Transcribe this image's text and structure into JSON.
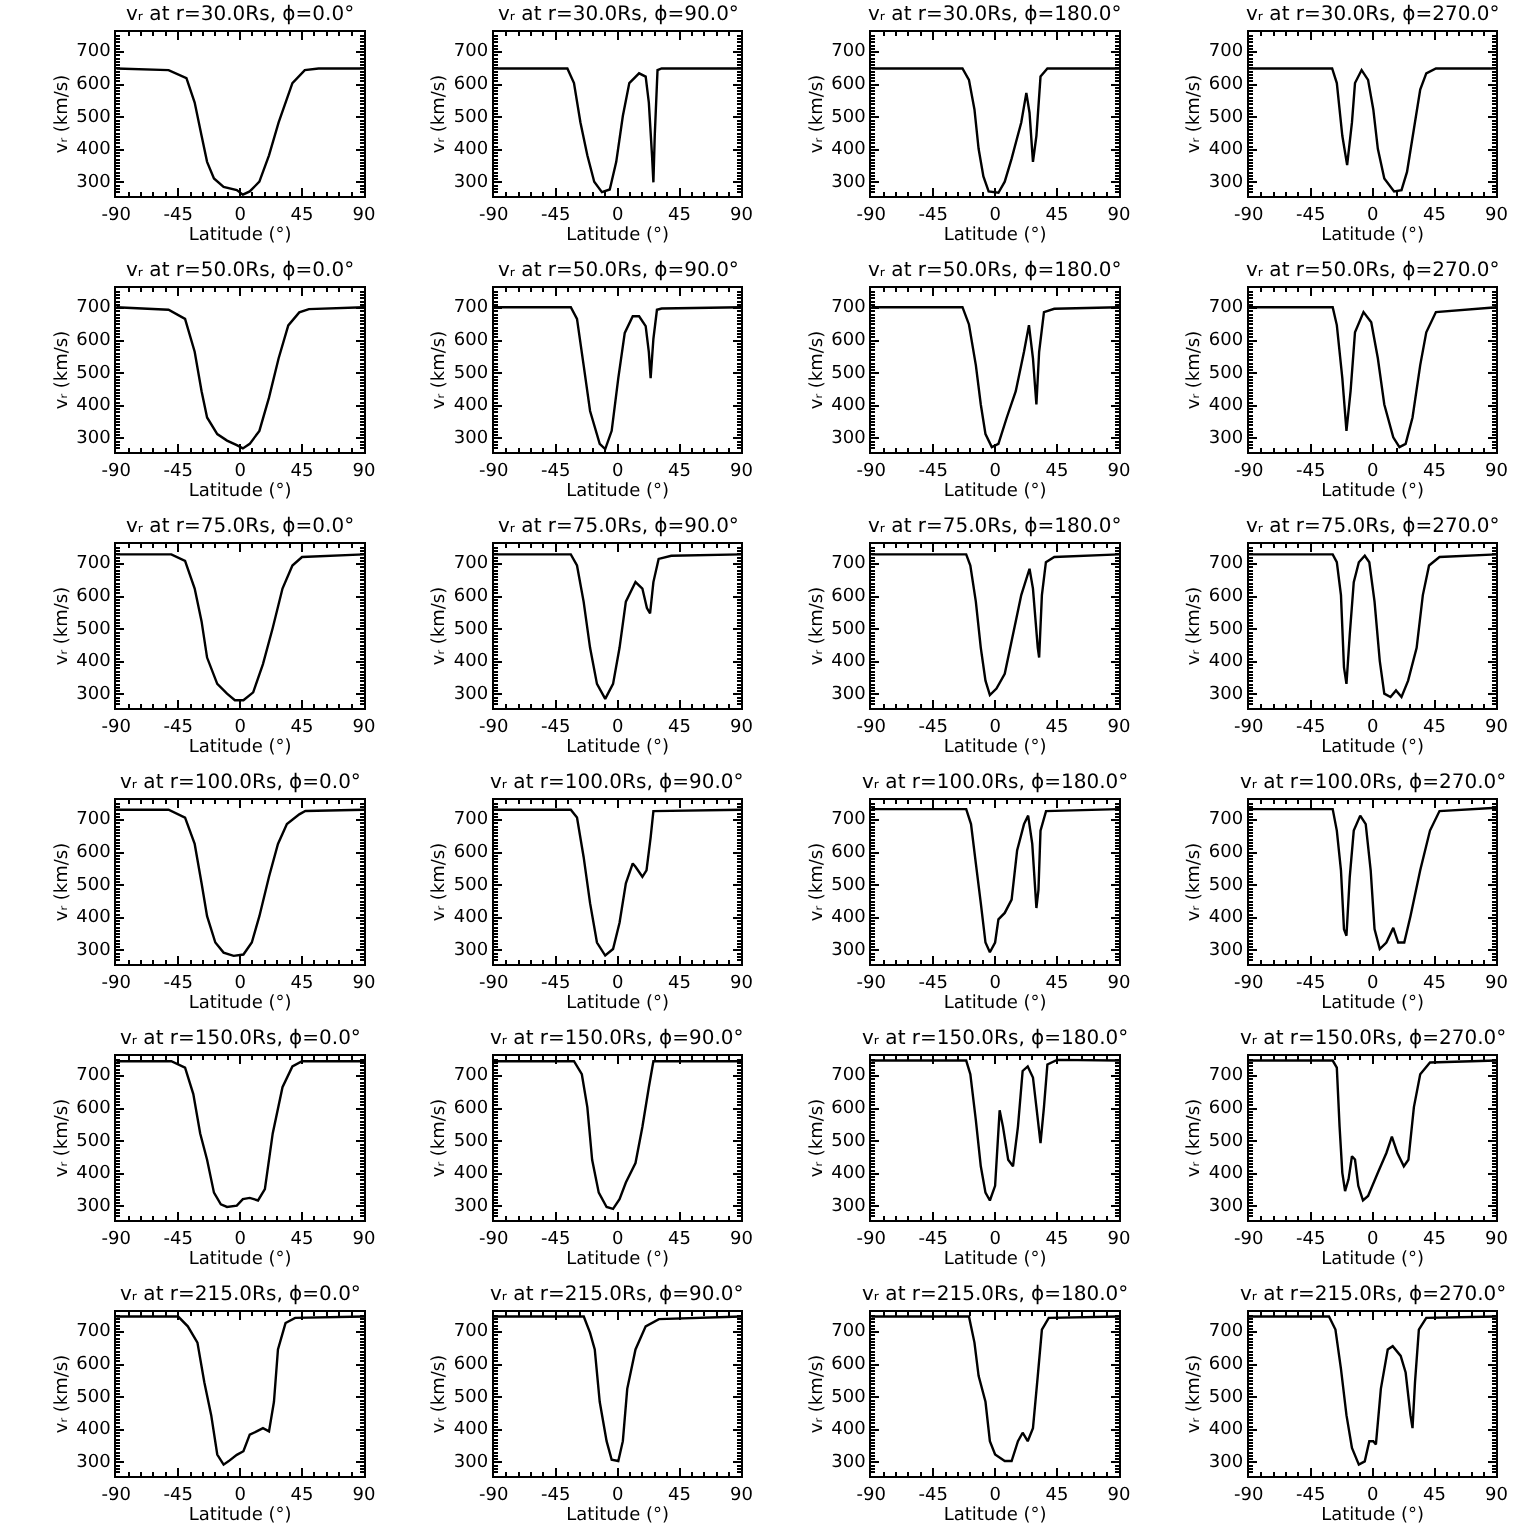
{
  "chart_data": [
    {
      "type": "line",
      "title": "vᵣ at r=30.0Rs, ϕ=0.0°",
      "xlabel": "Latitude (°)",
      "ylabel": "vᵣ (km/s)",
      "xlim": [
        -90,
        90
      ],
      "xticks": [
        -90,
        -45,
        0,
        45,
        90
      ],
      "ylim": [
        258,
        762
      ],
      "yticks": [
        300,
        400,
        500,
        600,
        700
      ],
      "x": [
        -90,
        -52,
        -39,
        -33,
        -28,
        -24,
        -19,
        -12,
        -2.4,
        2,
        7,
        14,
        21,
        28,
        38,
        47,
        57,
        90
      ],
      "series": [
        {
          "color": "#000000",
          "values": [
            650,
            645,
            620,
            545,
            443,
            363,
            312,
            286,
            276,
            262,
            272,
            302,
            383,
            484,
            605,
            645,
            650,
            650
          ]
        }
      ]
    },
    {
      "type": "line",
      "title": "vᵣ at r=30.0Rs, ϕ=90.0°",
      "xlabel": "Latitude (°)",
      "ylabel": "vᵣ (km/s)",
      "xlim": [
        -90,
        90
      ],
      "xticks": [
        -90,
        -45,
        0,
        45,
        90
      ],
      "ylim": [
        258,
        762
      ],
      "yticks": [
        300,
        400,
        500,
        600,
        700
      ],
      "x": [
        -90,
        -36.5,
        -31.7,
        -27,
        -22,
        -17,
        -11.4,
        -5.7,
        -1,
        3.8,
        8.5,
        15.6,
        20.4,
        22.7,
        25,
        26,
        27,
        29,
        32,
        90
      ],
      "series": [
        {
          "color": "#000000",
          "values": [
            650,
            650,
            605,
            484,
            383,
            302,
            270,
            278,
            363,
            504,
            605,
            635,
            625,
            545,
            383,
            300,
            444,
            645,
            650,
            650
          ]
        }
      ]
    },
    {
      "type": "line",
      "title": "vᵣ at r=30.0Rs, ϕ=180.0°",
      "xlabel": "Latitude (°)",
      "ylabel": "vᵣ (km/s)",
      "xlim": [
        -90,
        90
      ],
      "xticks": [
        -90,
        -45,
        0,
        45,
        90
      ],
      "ylim": [
        258,
        762
      ],
      "yticks": [
        300,
        400,
        500,
        600,
        700
      ],
      "x": [
        -90,
        -23.7,
        -19,
        -15,
        -12,
        -8.5,
        -4.7,
        2.4,
        7,
        12,
        19,
        22.7,
        25,
        27.5,
        30,
        33,
        38,
        90
      ],
      "series": [
        {
          "color": "#000000",
          "values": [
            650,
            650,
            615,
            524,
            403,
            318,
            272,
            268,
            302,
            373,
            484,
            575,
            514,
            363,
            443,
            625,
            650,
            650
          ]
        }
      ]
    },
    {
      "type": "line",
      "title": "vᵣ at r=30.0Rs, ϕ=270.0°",
      "xlabel": "Latitude (°)",
      "ylabel": "vᵣ (km/s)",
      "xlim": [
        -90,
        90
      ],
      "xticks": [
        -90,
        -45,
        0,
        45,
        90
      ],
      "ylim": [
        258,
        762
      ],
      "yticks": [
        300,
        400,
        500,
        600,
        700
      ],
      "x": [
        -90,
        -29.4,
        -26,
        -22,
        -18.5,
        -15,
        -12.8,
        -8,
        -3.3,
        0.5,
        3.8,
        8.5,
        15.6,
        21,
        25,
        30,
        34.6,
        39,
        46,
        90
      ],
      "series": [
        {
          "color": "#000000",
          "values": [
            650,
            650,
            605,
            443,
            353,
            484,
            605,
            645,
            615,
            524,
            403,
            312,
            272,
            276,
            332,
            464,
            585,
            635,
            650,
            650
          ]
        }
      ]
    },
    {
      "type": "line",
      "title": "vᵣ at r=50.0Rs, ϕ=0.0°",
      "xlabel": "Latitude (°)",
      "ylabel": "vᵣ (km/s)",
      "xlim": [
        -90,
        90
      ],
      "xticks": [
        -90,
        -45,
        0,
        45,
        90
      ],
      "ylim": [
        258,
        762
      ],
      "yticks": [
        300,
        400,
        500,
        600,
        700
      ],
      "x": [
        -90,
        -52,
        -40,
        -33,
        -28,
        -24,
        -16.6,
        -9.5,
        -2.4,
        2,
        7,
        14,
        21,
        28,
        35,
        43,
        50,
        90
      ],
      "series": [
        {
          "color": "#000000",
          "values": [
            703,
            695,
            667,
            566,
            445,
            364,
            313,
            293,
            279,
            269,
            283,
            323,
            425,
            546,
            647,
            687,
            697,
            703
          ]
        }
      ]
    },
    {
      "type": "line",
      "title": "vᵣ at r=50.0Rs, ϕ=90.0°",
      "xlabel": "Latitude (°)",
      "ylabel": "vᵣ (km/s)",
      "xlim": [
        -90,
        90
      ],
      "xticks": [
        -90,
        -45,
        0,
        45,
        90
      ],
      "ylim": [
        258,
        762
      ],
      "yticks": [
        300,
        400,
        500,
        600,
        700
      ],
      "x": [
        -90,
        -34,
        -29.5,
        -24.7,
        -20,
        -13,
        -9,
        -4.3,
        0.5,
        5.2,
        11,
        15.6,
        20.4,
        22.7,
        24,
        26,
        28.6,
        32,
        90
      ],
      "series": [
        {
          "color": "#000000",
          "values": [
            703,
            703,
            667,
            525,
            384,
            283,
            267,
            323,
            485,
            624,
            675,
            675,
            645,
            565,
            485,
            606,
            695,
            699,
            703
          ]
        }
      ]
    },
    {
      "type": "line",
      "title": "vᵣ at r=50.0Rs, ϕ=180.0°",
      "xlabel": "Latitude (°)",
      "ylabel": "vᵣ (km/s)",
      "xlim": [
        -90,
        90
      ],
      "xticks": [
        -90,
        -45,
        0,
        45,
        90
      ],
      "ylim": [
        258,
        762
      ],
      "yticks": [
        300,
        400,
        500,
        600,
        700
      ],
      "x": [
        -90,
        -23.7,
        -19,
        -14,
        -10.4,
        -7,
        -2.4,
        2.4,
        8.5,
        15,
        21,
        24.6,
        27.5,
        30,
        32,
        35.5,
        43,
        90
      ],
      "series": [
        {
          "color": "#000000",
          "values": [
            703,
            703,
            650,
            525,
            404,
            313,
            273,
            283,
            364,
            445,
            566,
            648,
            546,
            404,
            566,
            688,
            698,
            703
          ]
        }
      ]
    },
    {
      "type": "line",
      "title": "vᵣ at r=50.0Rs, ϕ=270.0°",
      "xlabel": "Latitude (°)",
      "ylabel": "vᵣ (km/s)",
      "xlim": [
        -90,
        90
      ],
      "xticks": [
        -90,
        -45,
        0,
        45,
        90
      ],
      "ylim": [
        258,
        762
      ],
      "yticks": [
        300,
        400,
        500,
        600,
        700
      ],
      "x": [
        -90,
        -29,
        -26,
        -22,
        -19,
        -16,
        -12.8,
        -6.6,
        -1,
        3.8,
        8.5,
        15,
        19.5,
        24,
        29,
        34.6,
        39,
        46,
        90
      ],
      "series": [
        {
          "color": "#000000",
          "values": [
            703,
            703,
            648,
            485,
            323,
            445,
            626,
            688,
            657,
            546,
            404,
            303,
            273,
            283,
            364,
            525,
            626,
            688,
            703
          ]
        }
      ]
    },
    {
      "type": "line",
      "title": "vᵣ at r=75.0Rs, ϕ=0.0°",
      "xlabel": "Latitude (°)",
      "ylabel": "vᵣ (km/s)",
      "xlim": [
        -90,
        90
      ],
      "xticks": [
        -90,
        -45,
        0,
        45,
        90
      ],
      "ylim": [
        258,
        762
      ],
      "yticks": [
        300,
        400,
        500,
        600,
        700
      ],
      "x": [
        -90,
        -50,
        -40,
        -33,
        -28,
        -24,
        -16.6,
        -9.5,
        -3.8,
        2.4,
        9.5,
        16.6,
        23.7,
        30.8,
        38,
        45,
        90
      ],
      "series": [
        {
          "color": "#000000",
          "values": [
            730,
            730,
            710,
            625,
            524,
            413,
            332,
            302,
            282,
            282,
            306,
            393,
            504,
            625,
            696,
            722,
            730
          ]
        }
      ]
    },
    {
      "type": "line",
      "title": "vᵣ at r=75.0Rs, ϕ=90.0°",
      "xlabel": "Latitude (°)",
      "ylabel": "vᵣ (km/s)",
      "xlim": [
        -90,
        90
      ],
      "xticks": [
        -90,
        -45,
        0,
        45,
        90
      ],
      "ylim": [
        258,
        762
      ],
      "yticks": [
        300,
        400,
        500,
        600,
        700
      ],
      "x": [
        -90,
        -34,
        -29.5,
        -24.7,
        -20,
        -15,
        -9,
        -3.3,
        1.4,
        6,
        13,
        18,
        21.3,
        23.6,
        26,
        29.8,
        39,
        90
      ],
      "series": [
        {
          "color": "#000000",
          "values": [
            730,
            730,
            696,
            585,
            443,
            332,
            286,
            332,
            443,
            585,
            645,
            625,
            565,
            549,
            645,
            716,
            726,
            730
          ]
        }
      ]
    },
    {
      "type": "line",
      "title": "vᵣ at r=75.0Rs, ϕ=180.0°",
      "xlabel": "Latitude (°)",
      "ylabel": "vᵣ (km/s)",
      "xlim": [
        -90,
        90
      ],
      "xticks": [
        -90,
        -45,
        0,
        45,
        90
      ],
      "ylim": [
        258,
        762
      ],
      "yticks": [
        300,
        400,
        500,
        600,
        700
      ],
      "x": [
        -90,
        -21,
        -18,
        -14,
        -10.4,
        -7,
        -3.8,
        1,
        7,
        12,
        19,
        25,
        27.5,
        31,
        32,
        34,
        36.9,
        43,
        90
      ],
      "series": [
        {
          "color": "#000000",
          "values": [
            730,
            730,
            696,
            585,
            443,
            342,
            298,
            318,
            363,
            464,
            605,
            686,
            625,
            443,
            413,
            605,
            706,
            722,
            730
          ]
        }
      ]
    },
    {
      "type": "line",
      "title": "vᵣ at r=75.0Rs, ϕ=270.0°",
      "xlabel": "Latitude (°)",
      "ylabel": "vᵣ (km/s)",
      "xlim": [
        -90,
        90
      ],
      "xticks": [
        -90,
        -45,
        0,
        45,
        90
      ],
      "ylim": [
        258,
        762
      ],
      "yticks": [
        300,
        400,
        500,
        600,
        700
      ],
      "x": [
        -90,
        -29,
        -26,
        -23,
        -20.8,
        -19,
        -16.6,
        -13.7,
        -10,
        -5.7,
        -2.4,
        1.4,
        5.2,
        8.5,
        13,
        17,
        21,
        25.8,
        32,
        36.5,
        41,
        48.6,
        90
      ],
      "series": [
        {
          "color": "#000000",
          "values": [
            730,
            730,
            706,
            605,
            383,
            332,
            484,
            645,
            706,
            726,
            706,
            585,
            403,
            302,
            292,
            312,
            292,
            342,
            443,
            605,
            696,
            722,
            730
          ]
        }
      ]
    },
    {
      "type": "line",
      "title": "vᵣ at r=100.0Rs, ϕ=0.0°",
      "xlabel": "Latitude (°)",
      "ylabel": "vᵣ (km/s)",
      "xlim": [
        -90,
        90
      ],
      "xticks": [
        -90,
        -45,
        0,
        45,
        90
      ],
      "ylim": [
        258,
        762
      ],
      "yticks": [
        300,
        400,
        500,
        600,
        700
      ],
      "x": [
        -90,
        -52,
        -40,
        -33,
        -28,
        -24,
        -18,
        -12,
        -4.7,
        2.4,
        8.5,
        14,
        21,
        27.5,
        34,
        43,
        47.4,
        90
      ],
      "series": [
        {
          "color": "#000000",
          "values": [
            732,
            732,
            708,
            627,
            506,
            405,
            324,
            293,
            283,
            287,
            324,
            405,
            526,
            627,
            688,
            718,
            728,
            732
          ]
        }
      ]
    },
    {
      "type": "line",
      "title": "vᵣ at r=100.0Rs, ϕ=90.0°",
      "xlabel": "Latitude (°)",
      "ylabel": "vᵣ (km/s)",
      "xlim": [
        -90,
        90
      ],
      "xticks": [
        -90,
        -45,
        0,
        45,
        90
      ],
      "ylim": [
        258,
        762
      ],
      "yticks": [
        300,
        400,
        500,
        600,
        700
      ],
      "x": [
        -90,
        -34,
        -29.5,
        -24.7,
        -20,
        -15,
        -9,
        -3.3,
        1.4,
        6,
        11,
        13,
        18,
        21,
        24,
        26,
        90
      ],
      "series": [
        {
          "color": "#000000",
          "values": [
            732,
            732,
            708,
            587,
            445,
            324,
            284,
            304,
            385,
            506,
            567,
            557,
            526,
            546,
            647,
            728,
            732
          ]
        }
      ]
    },
    {
      "type": "line",
      "title": "vᵣ at r=100.0Rs, ϕ=180.0°",
      "xlabel": "Latitude (°)",
      "ylabel": "vᵣ (km/s)",
      "xlim": [
        -90,
        90
      ],
      "xticks": [
        -90,
        -45,
        0,
        45,
        90
      ],
      "ylim": [
        258,
        762
      ],
      "yticks": [
        300,
        400,
        500,
        600,
        700
      ],
      "x": [
        -90,
        -21,
        -17.5,
        -14,
        -10.4,
        -7,
        -3.8,
        0,
        2.4,
        7,
        12,
        16,
        21,
        24,
        27,
        30,
        31.5,
        33,
        37,
        90
      ],
      "series": [
        {
          "color": "#000000",
          "values": [
            734,
            734,
            688,
            567,
            445,
            324,
            294,
            324,
            395,
            415,
            456,
            607,
            688,
            714,
            627,
            430,
            486,
            668,
            728,
            734
          ]
        }
      ]
    },
    {
      "type": "line",
      "title": "vᵣ at r=100.0Rs, ϕ=270.0°",
      "xlabel": "Latitude (°)",
      "ylabel": "vᵣ (km/s)",
      "xlim": [
        -90,
        90
      ],
      "xticks": [
        -90,
        -45,
        0,
        45,
        90
      ],
      "ylim": [
        258,
        762
      ],
      "yticks": [
        300,
        400,
        500,
        600,
        700
      ],
      "x": [
        -90,
        -29,
        -26,
        -23,
        -20.8,
        -19,
        -16.6,
        -13.7,
        -9,
        -5,
        -1.4,
        1.4,
        5.2,
        10,
        15,
        18.6,
        23,
        27.5,
        34.6,
        41.7,
        48.6,
        90
      ],
      "series": [
        {
          "color": "#000000",
          "values": [
            734,
            734,
            668,
            546,
            365,
            345,
            526,
            668,
            714,
            688,
            546,
            365,
            304,
            324,
            369,
            324,
            324,
            405,
            546,
            668,
            728,
            738
          ]
        }
      ]
    },
    {
      "type": "line",
      "title": "vᵣ at r=150.0Rs, ϕ=0.0°",
      "xlabel": "Latitude (°)",
      "ylabel": "vᵣ (km/s)",
      "xlim": [
        -90,
        90
      ],
      "xticks": [
        -90,
        -45,
        0,
        45,
        90
      ],
      "ylim": [
        258,
        762
      ],
      "yticks": [
        300,
        400,
        500,
        600,
        700
      ],
      "x": [
        -90,
        -50,
        -40,
        -34,
        -29,
        -24,
        -19,
        -14,
        -9.5,
        -2.4,
        2,
        7,
        13,
        18,
        23.7,
        30.8,
        38,
        45,
        90
      ],
      "series": [
        {
          "color": "#000000",
          "values": [
            746,
            746,
            726,
            645,
            524,
            443,
            342,
            306,
            298,
            302,
            322,
            326,
            318,
            353,
            524,
            666,
            730,
            746,
            746
          ]
        }
      ]
    },
    {
      "type": "line",
      "title": "vᵣ at r=150.0Rs, ϕ=90.0°",
      "xlabel": "Latitude (°)",
      "ylabel": "vᵣ (km/s)",
      "xlim": [
        -90,
        90
      ],
      "xticks": [
        -90,
        -45,
        0,
        45,
        90
      ],
      "ylim": [
        258,
        762
      ],
      "yticks": [
        300,
        400,
        500,
        600,
        700
      ],
      "x": [
        -90,
        -31.7,
        -26,
        -22,
        -18.5,
        -13.7,
        -8,
        -3.3,
        1.4,
        6,
        13,
        18,
        22.7,
        26,
        90
      ],
      "series": [
        {
          "color": "#000000",
          "values": [
            746,
            746,
            706,
            605,
            443,
            342,
            298,
            292,
            322,
            373,
            433,
            544,
            666,
            746,
            746
          ]
        }
      ]
    },
    {
      "type": "line",
      "title": "vᵣ at r=150.0Rs, ϕ=180.0°",
      "xlabel": "Latitude (°)",
      "ylabel": "vᵣ (km/s)",
      "xlim": [
        -90,
        90
      ],
      "xticks": [
        -90,
        -45,
        0,
        45,
        90
      ],
      "ylim": [
        258,
        762
      ],
      "yticks": [
        300,
        400,
        500,
        600,
        700
      ],
      "x": [
        -90,
        -21,
        -18,
        -14,
        -10.4,
        -7,
        -3.8,
        0,
        3.3,
        5.7,
        9.5,
        13,
        16.6,
        20,
        23.7,
        27.5,
        30,
        33,
        35.5,
        38,
        45,
        90
      ],
      "series": [
        {
          "color": "#000000",
          "values": [
            748,
            748,
            706,
            565,
            423,
            342,
            318,
            363,
            595,
            545,
            443,
            423,
            545,
            716,
            730,
            696,
            605,
            494,
            605,
            736,
            750,
            748
          ]
        }
      ]
    },
    {
      "type": "line",
      "title": "vᵣ at r=150.0Rs, ϕ=270.0°",
      "xlabel": "Latitude (°)",
      "ylabel": "vᵣ (km/s)",
      "xlim": [
        -90,
        90
      ],
      "xticks": [
        -90,
        -45,
        0,
        45,
        90
      ],
      "ylim": [
        258,
        762
      ],
      "yticks": [
        300,
        400,
        500,
        600,
        700
      ],
      "x": [
        -90,
        -29,
        -26,
        -24,
        -22,
        -20,
        -17.5,
        -15,
        -12.8,
        -10.4,
        -7,
        -3.3,
        3.8,
        10,
        14,
        18,
        22.7,
        26,
        30,
        34.6,
        41.7,
        90
      ],
      "series": [
        {
          "color": "#000000",
          "values": [
            748,
            748,
            726,
            545,
            403,
            347,
            383,
            454,
            444,
            363,
            318,
            332,
            403,
            464,
            514,
            464,
            423,
            443,
            605,
            706,
            742,
            748
          ]
        }
      ]
    },
    {
      "type": "line",
      "title": "vᵣ at r=215.0Rs, ϕ=0.0°",
      "xlabel": "Latitude (°)",
      "ylabel": "vᵣ (km/s)",
      "xlim": [
        -90,
        90
      ],
      "xticks": [
        -90,
        -45,
        0,
        45,
        90
      ],
      "ylim": [
        258,
        762
      ],
      "yticks": [
        300,
        400,
        500,
        600,
        700
      ],
      "x": [
        -90,
        -45,
        -38,
        -31,
        -26,
        -21,
        -16.6,
        -12,
        -8.5,
        -2.4,
        2.4,
        7,
        12,
        16.6,
        21,
        24.6,
        27.5,
        33,
        40,
        90
      ],
      "series": [
        {
          "color": "#000000",
          "values": [
            748,
            748,
            718,
            668,
            546,
            445,
            324,
            293,
            303,
            323,
            334,
            385,
            395,
            405,
            395,
            486,
            647,
            728,
            744,
            748
          ]
        }
      ]
    },
    {
      "type": "line",
      "title": "vᵣ at r=215.0Rs, ϕ=90.0°",
      "xlabel": "Latitude (°)",
      "ylabel": "vᵣ (km/s)",
      "xlim": [
        -90,
        90
      ],
      "xticks": [
        -90,
        -45,
        0,
        45,
        90
      ],
      "ylim": [
        258,
        762
      ],
      "yticks": [
        300,
        400,
        500,
        600,
        700
      ],
      "x": [
        -90,
        -24.6,
        -20,
        -16.6,
        -13,
        -8,
        -4.3,
        0.5,
        3.8,
        7,
        13,
        20.4,
        30,
        90
      ],
      "series": [
        {
          "color": "#000000",
          "values": [
            748,
            748,
            698,
            647,
            486,
            365,
            308,
            304,
            365,
            526,
            647,
            718,
            740,
            748
          ]
        }
      ]
    },
    {
      "type": "line",
      "title": "vᵣ at r=215.0Rs, ϕ=180.0°",
      "xlabel": "Latitude (°)",
      "ylabel": "vᵣ (km/s)",
      "xlim": [
        -90,
        90
      ],
      "xticks": [
        -90,
        -45,
        0,
        45,
        90
      ],
      "ylim": [
        258,
        762
      ],
      "yticks": [
        300,
        400,
        500,
        600,
        700
      ],
      "x": [
        -90,
        -19,
        -15,
        -12,
        -7,
        -3.8,
        0,
        7,
        12,
        16.6,
        20,
        23.7,
        27.5,
        31,
        34,
        39,
        90
      ],
      "series": [
        {
          "color": "#000000",
          "values": [
            748,
            748,
            668,
            566,
            486,
            365,
            324,
            304,
            304,
            365,
            391,
            365,
            405,
            566,
            708,
            744,
            748
          ]
        }
      ]
    },
    {
      "type": "line",
      "title": "vᵣ at r=215.0Rs, ϕ=270.0°",
      "xlabel": "Latitude (°)",
      "ylabel": "vᵣ (km/s)",
      "xlim": [
        -90,
        90
      ],
      "xticks": [
        -90,
        -45,
        0,
        45,
        90
      ],
      "ylim": [
        258,
        762
      ],
      "yticks": [
        300,
        400,
        500,
        600,
        700
      ],
      "x": [
        -90,
        -31.7,
        -27,
        -23,
        -19,
        -15,
        -10,
        -5.7,
        -2.4,
        0.5,
        2.4,
        6,
        11,
        14.6,
        20.4,
        24,
        27.5,
        29,
        30.8,
        33.6,
        39,
        90
      ],
      "series": [
        {
          "color": "#000000",
          "values": [
            748,
            748,
            708,
            587,
            445,
            344,
            293,
            303,
            365,
            365,
            355,
            526,
            647,
            657,
            627,
            576,
            445,
            405,
            546,
            708,
            744,
            748
          ]
        }
      ]
    }
  ]
}
